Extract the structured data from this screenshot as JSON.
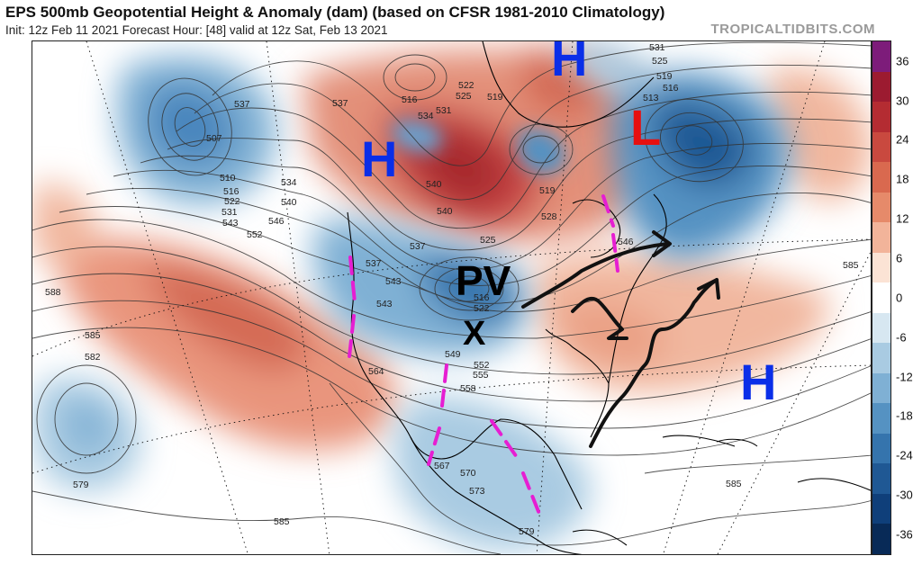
{
  "header": {
    "title": "EPS 500mb Geopotential Height & Anomaly (dam) (based on CFSR 1981-2010 Climatology)",
    "subtitle": "Init: 12z Feb 11 2021   Forecast Hour: [48]   valid at 12z Sat, Feb 13 2021",
    "brand": "TROPICALTIDBITS.COM"
  },
  "colorbar": {
    "ticks": [
      "36",
      "30",
      "24",
      "18",
      "12",
      "6",
      "0",
      "-6",
      "-12",
      "-18",
      "-24",
      "-30",
      "-36"
    ],
    "colors": [
      "#7d1c7a",
      "#9c1b30",
      "#b42c32",
      "#c9493f",
      "#d9694f",
      "#e68a6a",
      "#f2b49a",
      "#fbe3d5",
      "#ffffff",
      "#d7e7f1",
      "#a9cbe2",
      "#7fb0d4",
      "#5592c2",
      "#3574ad",
      "#1f5894",
      "#0f3f7a",
      "#082a57"
    ]
  },
  "annotations": {
    "high_1": "H",
    "high_2": "H",
    "high_3": "H",
    "low_1": "L",
    "pv": "PV",
    "x": "X"
  },
  "contour_labels": [
    "537",
    "516",
    "522",
    "525",
    "531",
    "534",
    "519",
    "531",
    "525",
    "519",
    "516",
    "513",
    "507",
    "510",
    "516",
    "522",
    "531",
    "543",
    "552",
    "534",
    "540",
    "546",
    "537",
    "543",
    "540",
    "528",
    "525",
    "519",
    "537",
    "540",
    "537",
    "543",
    "516",
    "522",
    "549",
    "552",
    "555",
    "558",
    "564",
    "588",
    "585",
    "582",
    "579",
    "585",
    "585",
    "567",
    "570",
    "573",
    "579",
    "585",
    "546"
  ],
  "map_features": {
    "low_center": "anomaly-low-icon",
    "coast": "coastline-icon"
  }
}
